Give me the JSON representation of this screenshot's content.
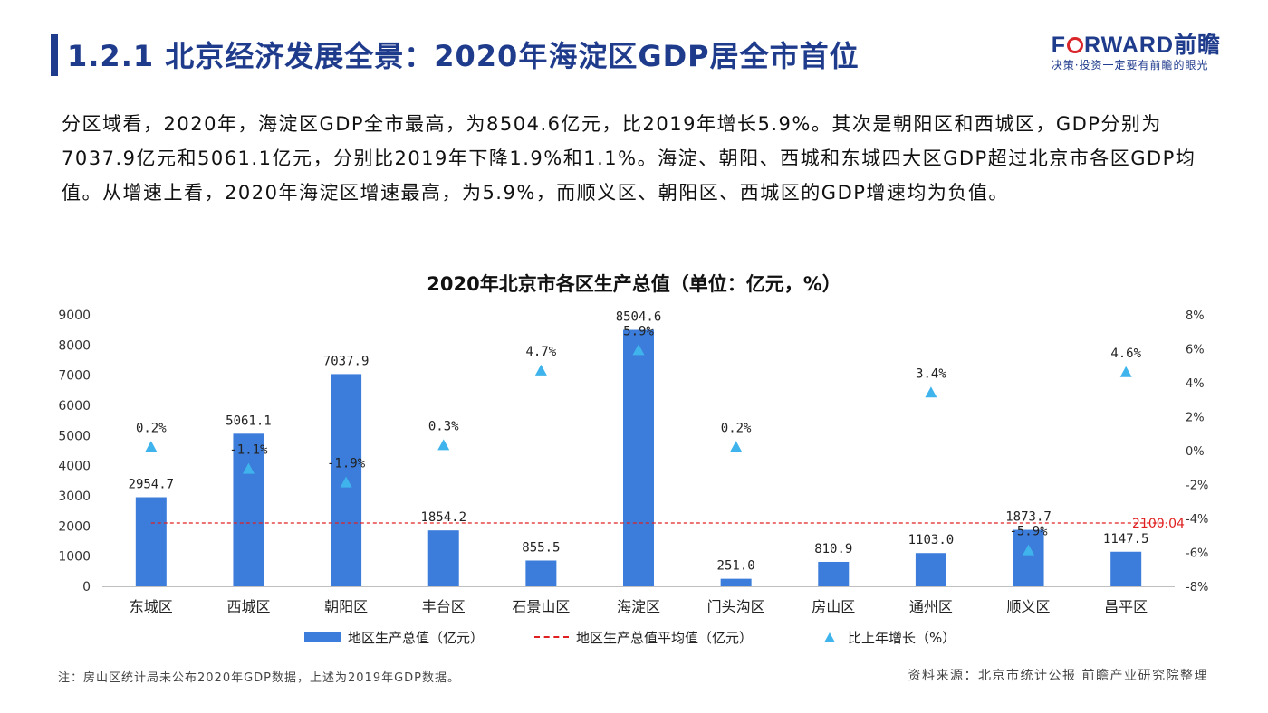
{
  "header": {
    "title": "1.2.1 北京经济发展全景：2020年海淀区GDP居全市首位",
    "logo_prefix": "F",
    "logo_suffix": "RWARD前瞻",
    "logo_tagline": "决策·投资一定要有前瞻的眼光"
  },
  "paragraph": "分区域看，2020年，海淀区GDP全市最高，为8504.6亿元，比2019年增长5.9%。其次是朝阳区和西城区，GDP分别为7037.9亿元和5061.1亿元，分别比2019年下降1.9%和1.1%。海淀、朝阳、西城和东城四大区GDP超过北京市各区GDP均值。从增速上看，2020年海淀区增速最高，为5.9%，而顺义区、朝阳区、西城区的GDP增速均为负值。",
  "chart_data": {
    "type": "bar",
    "title": "2020年北京市各区生产总值（单位：亿元，%）",
    "categories": [
      "东城区",
      "西城区",
      "朝阳区",
      "丰台区",
      "石景山区",
      "海淀区",
      "门头沟区",
      "房山区",
      "通州区",
      "顺义区",
      "昌平区"
    ],
    "series": [
      {
        "name": "地区生产总值（亿元）",
        "type": "bar",
        "axis": "left",
        "values": [
          2954.7,
          5061.1,
          7037.9,
          1854.2,
          855.5,
          8504.6,
          251.0,
          810.9,
          1103.0,
          1873.7,
          1147.5
        ],
        "labels": [
          "2954.7",
          "5061.1",
          "7037.9",
          "1854.2",
          "855.5",
          "8504.6",
          "251.0",
          "810.9",
          "1103.0",
          "1873.7",
          "1147.5"
        ]
      },
      {
        "name": "地区生产总值平均值（亿元）",
        "type": "line",
        "axis": "left",
        "value": 2100.04,
        "label": "2100.04"
      },
      {
        "name": "比上年增长（%）",
        "type": "scatter",
        "axis": "right",
        "values": [
          0.2,
          -1.1,
          -1.9,
          0.3,
          4.7,
          5.9,
          0.2,
          null,
          3.4,
          -5.9,
          4.6
        ],
        "labels": [
          "0.2%",
          "-1.1%",
          "-1.9%",
          "0.3%",
          "4.7%",
          "5.9%",
          "0.2%",
          "",
          "3.4%",
          "-5.9%",
          "4.6%"
        ]
      }
    ],
    "y_left": {
      "min": 0,
      "max": 9000,
      "ticks": [
        0,
        1000,
        2000,
        3000,
        4000,
        5000,
        6000,
        7000,
        8000,
        9000
      ],
      "tick_labels": [
        "0",
        "1000",
        "2000",
        "3000",
        "4000",
        "5000",
        "6000",
        "7000",
        "8000",
        "9000"
      ]
    },
    "y_right": {
      "min": -8,
      "max": 8,
      "ticks": [
        -8,
        -6,
        -4,
        -2,
        0,
        2,
        4,
        6,
        8
      ],
      "tick_labels": [
        "-8%",
        "-6%",
        "-4%",
        "-2%",
        "0%",
        "2%",
        "4%",
        "6%",
        "8%"
      ]
    },
    "legend": [
      "地区生产总值（亿元）",
      "地区生产总值平均值（亿元）",
      "比上年增长（%）"
    ],
    "legend_position": "bottom",
    "colors": {
      "bar": "#3c7ddb",
      "avg_line": "#e02020",
      "marker": "#3fb4ec"
    }
  },
  "footnote": "注：房山区统计局未公布2020年GDP数据，上述为2019年GDP数据。",
  "source": "资料来源：北京市统计公报 前瞻产业研究院整理"
}
